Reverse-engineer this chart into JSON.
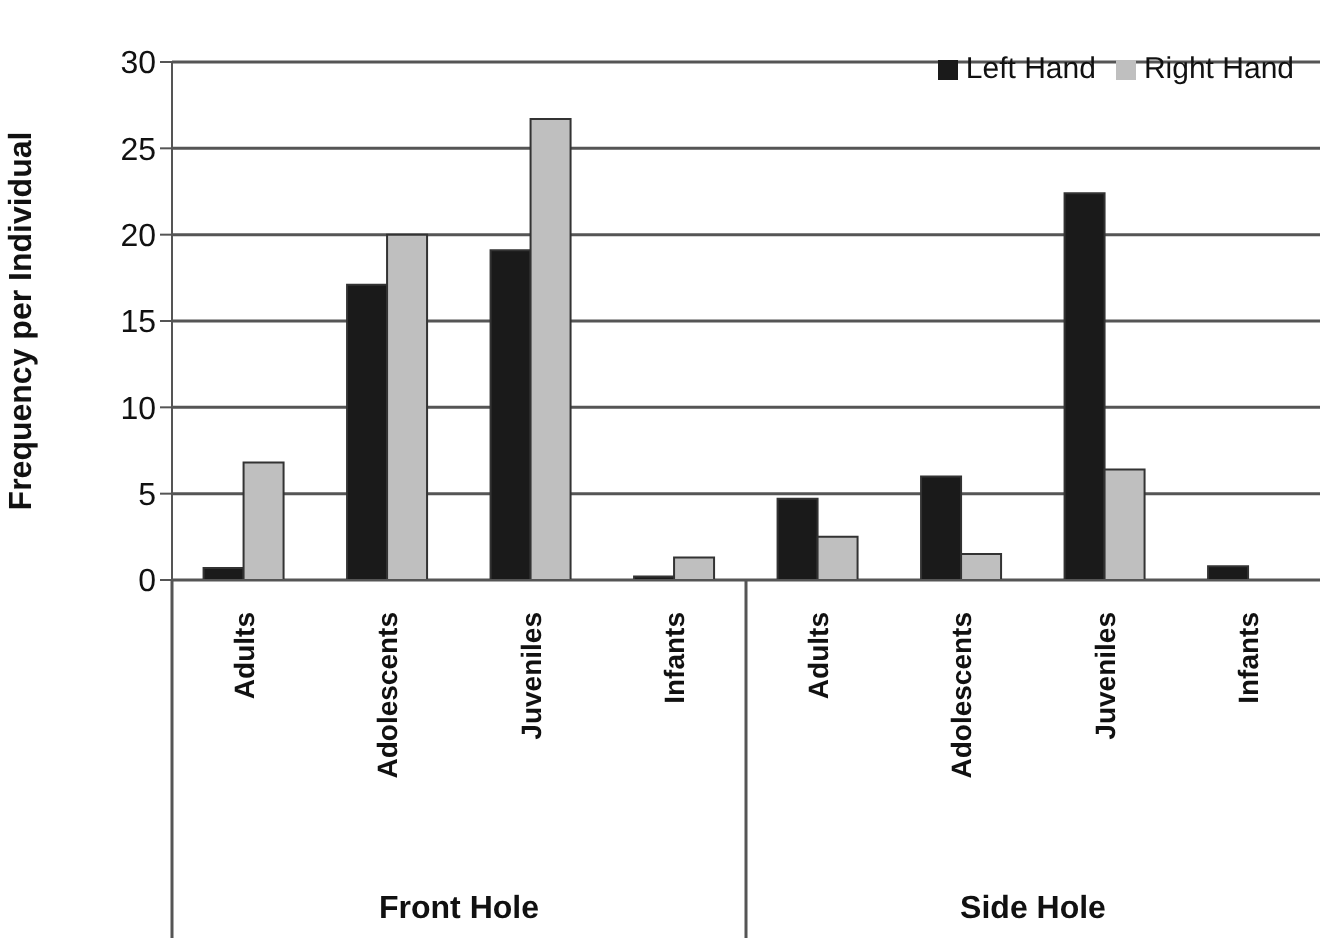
{
  "chart_data": {
    "type": "bar",
    "ylabel": "Frequency per Individual",
    "categories": [
      "Adults",
      "Adolescents",
      "Juveniles",
      "Infants",
      "Adults",
      "Adolescents",
      "Juveniles",
      "Infants"
    ],
    "series": [
      {
        "name": "Left Hand",
        "color": "#1a1a1a",
        "values": [
          0.7,
          17.1,
          19.1,
          0.2,
          4.7,
          6.0,
          22.4,
          0.8
        ]
      },
      {
        "name": "Right Hand",
        "color": "#bfbfbf",
        "values": [
          6.8,
          20.0,
          26.7,
          1.3,
          2.5,
          1.5,
          6.4,
          0
        ]
      }
    ],
    "annotations": [
      "Front Hole",
      "Side Hole"
    ],
    "ylim": [
      0,
      30
    ],
    "yticks": [
      0,
      5,
      10,
      15,
      20,
      25,
      30
    ],
    "grid": "y",
    "legend": "top right"
  }
}
